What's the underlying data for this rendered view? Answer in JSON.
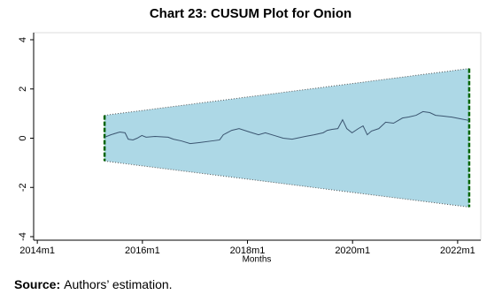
{
  "chart_data": {
    "type": "cusum",
    "title": "Chart 23: CUSUM Plot for Onion",
    "x_label": "Months",
    "xlim": [
      2013.93,
      2022.44
    ],
    "ylim": [
      -4,
      4
    ],
    "xticks": [
      {
        "value": 2014,
        "label": "2014m1"
      },
      {
        "value": 2016,
        "label": "2016m1"
      },
      {
        "value": 2018,
        "label": "2018m1"
      },
      {
        "value": 2020,
        "label": "2020m1"
      },
      {
        "value": 2022,
        "label": "2022m1"
      }
    ],
    "yticks": [
      -4,
      -2,
      0,
      2,
      4
    ],
    "x": [
      2015.28,
      2015.4,
      2015.57,
      2015.67,
      2015.73,
      2015.82,
      2015.9,
      2015.99,
      2016.07,
      2016.24,
      2016.49,
      2016.59,
      2016.74,
      2016.91,
      2017.08,
      2017.33,
      2017.47,
      2017.54,
      2017.7,
      2017.84,
      2018.04,
      2018.21,
      2018.34,
      2018.51,
      2018.68,
      2018.85,
      2019.1,
      2019.27,
      2019.44,
      2019.52,
      2019.61,
      2019.72,
      2019.81,
      2019.89,
      2019.99,
      2020.11,
      2020.2,
      2020.28,
      2020.36,
      2020.5,
      2020.63,
      2020.78,
      2020.95,
      2021.07,
      2021.21,
      2021.34,
      2021.47,
      2021.58,
      2021.71,
      2021.88,
      2022.05,
      2022.22
    ],
    "y": [
      0.04,
      0.14,
      0.25,
      0.22,
      -0.04,
      -0.07,
      0,
      0.11,
      0.04,
      0.07,
      0.04,
      -0.04,
      -0.11,
      -0.22,
      -0.18,
      -0.11,
      -0.07,
      0.14,
      0.32,
      0.39,
      0.25,
      0.14,
      0.22,
      0.11,
      0,
      -0.04,
      0.07,
      0.14,
      0.22,
      0.32,
      0.36,
      0.39,
      0.75,
      0.39,
      0.22,
      0.39,
      0.5,
      0.14,
      0.29,
      0.39,
      0.65,
      0.61,
      0.82,
      0.86,
      0.93,
      1.08,
      1.04,
      0.93,
      0.9,
      0.86,
      0.79,
      0.72
    ],
    "color": "#3b5570",
    "band": {
      "x": [
        2015.28,
        2022.22
      ],
      "upper": [
        0.93,
        2.83
      ],
      "lower": [
        -0.93,
        -2.8
      ],
      "color": "#add8e6",
      "edge_color": "#006400"
    },
    "source_label": "Source:",
    "source_text": "Authors’ estimation."
  }
}
